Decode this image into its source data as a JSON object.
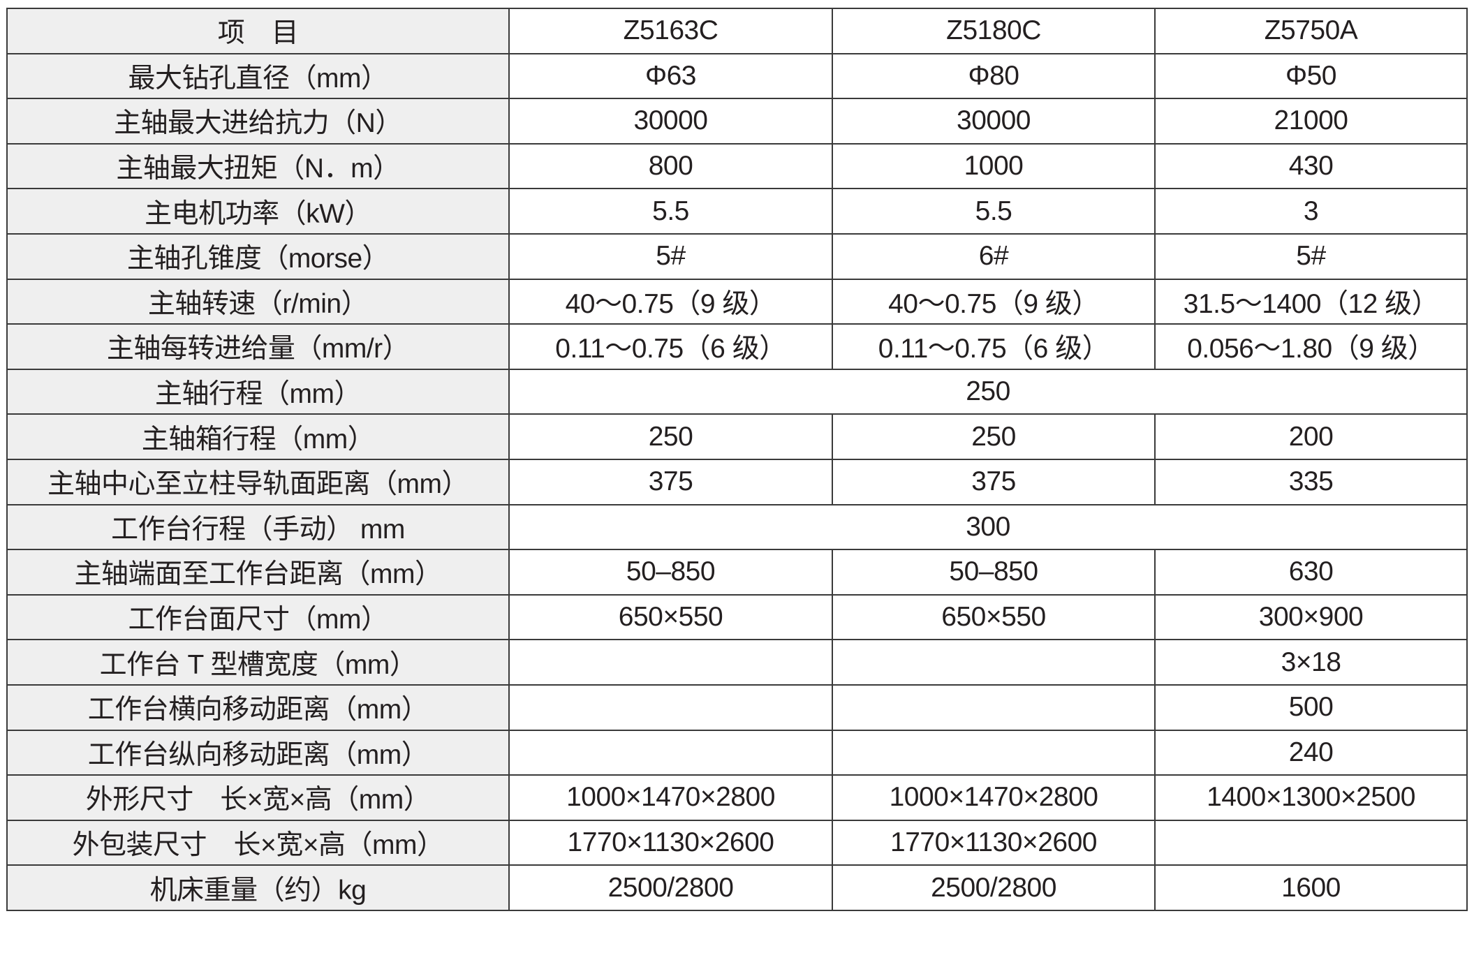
{
  "header": [
    "项　目",
    "Z5163C",
    "Z5180C",
    "Z5750A"
  ],
  "rows": [
    {
      "label": "最大钻孔直径（mm）",
      "values": [
        "Φ63",
        "Φ80",
        "Φ50"
      ]
    },
    {
      "label": "主轴最大进给抗力（N）",
      "values": [
        "30000",
        "30000",
        "21000"
      ]
    },
    {
      "label": "主轴最大扭矩（N．m）",
      "values": [
        "800",
        "1000",
        "430"
      ]
    },
    {
      "label": "主电机功率（kW）",
      "values": [
        "5.5",
        "5.5",
        "3"
      ]
    },
    {
      "label": "主轴孔锥度（morse）",
      "values": [
        "5#",
        "6#",
        "5#"
      ]
    },
    {
      "label": "主轴转速（r/min）",
      "values": [
        "40～0.75（9 级）",
        "40～0.75（9 级）",
        "31.5～1400（12 级）"
      ]
    },
    {
      "label": "主轴每转进给量（mm/r）",
      "values": [
        "0.11～0.75（6 级）",
        "0.11～0.75（6 级）",
        "0.056～1.80（9 级）"
      ]
    },
    {
      "label": "主轴行程（mm）",
      "merged": "250"
    },
    {
      "label": "主轴箱行程（mm）",
      "values": [
        "250",
        "250",
        "200"
      ]
    },
    {
      "label": "主轴中心至立柱导轨面距离（mm）",
      "values": [
        "375",
        "375",
        "335"
      ]
    },
    {
      "label": "工作台行程（手动） mm",
      "merged": "300"
    },
    {
      "label": "主轴端面至工作台距离（mm）",
      "values": [
        "50–850",
        "50–850",
        "630"
      ]
    },
    {
      "label": "工作台面尺寸（mm）",
      "values": [
        "650×550",
        "650×550",
        "300×900"
      ]
    },
    {
      "label": "工作台 T 型槽宽度（mm）",
      "values": [
        "",
        "",
        "3×18"
      ]
    },
    {
      "label": "工作台横向移动距离（mm）",
      "values": [
        "",
        "",
        "500"
      ]
    },
    {
      "label": "工作台纵向移动距离（mm）",
      "values": [
        "",
        "",
        "240"
      ]
    },
    {
      "label": "外形尺寸　长×宽×高（mm）",
      "values": [
        "1000×1470×2800",
        "1000×1470×2800",
        "1400×1300×2500"
      ]
    },
    {
      "label": "外包装尺寸　长×宽×高（mm）",
      "values": [
        "1770×1130×2600",
        "1770×1130×2600",
        ""
      ]
    },
    {
      "label": "机床重量（约）kg",
      "values": [
        "2500/2800",
        "2500/2800",
        "1600"
      ]
    }
  ]
}
